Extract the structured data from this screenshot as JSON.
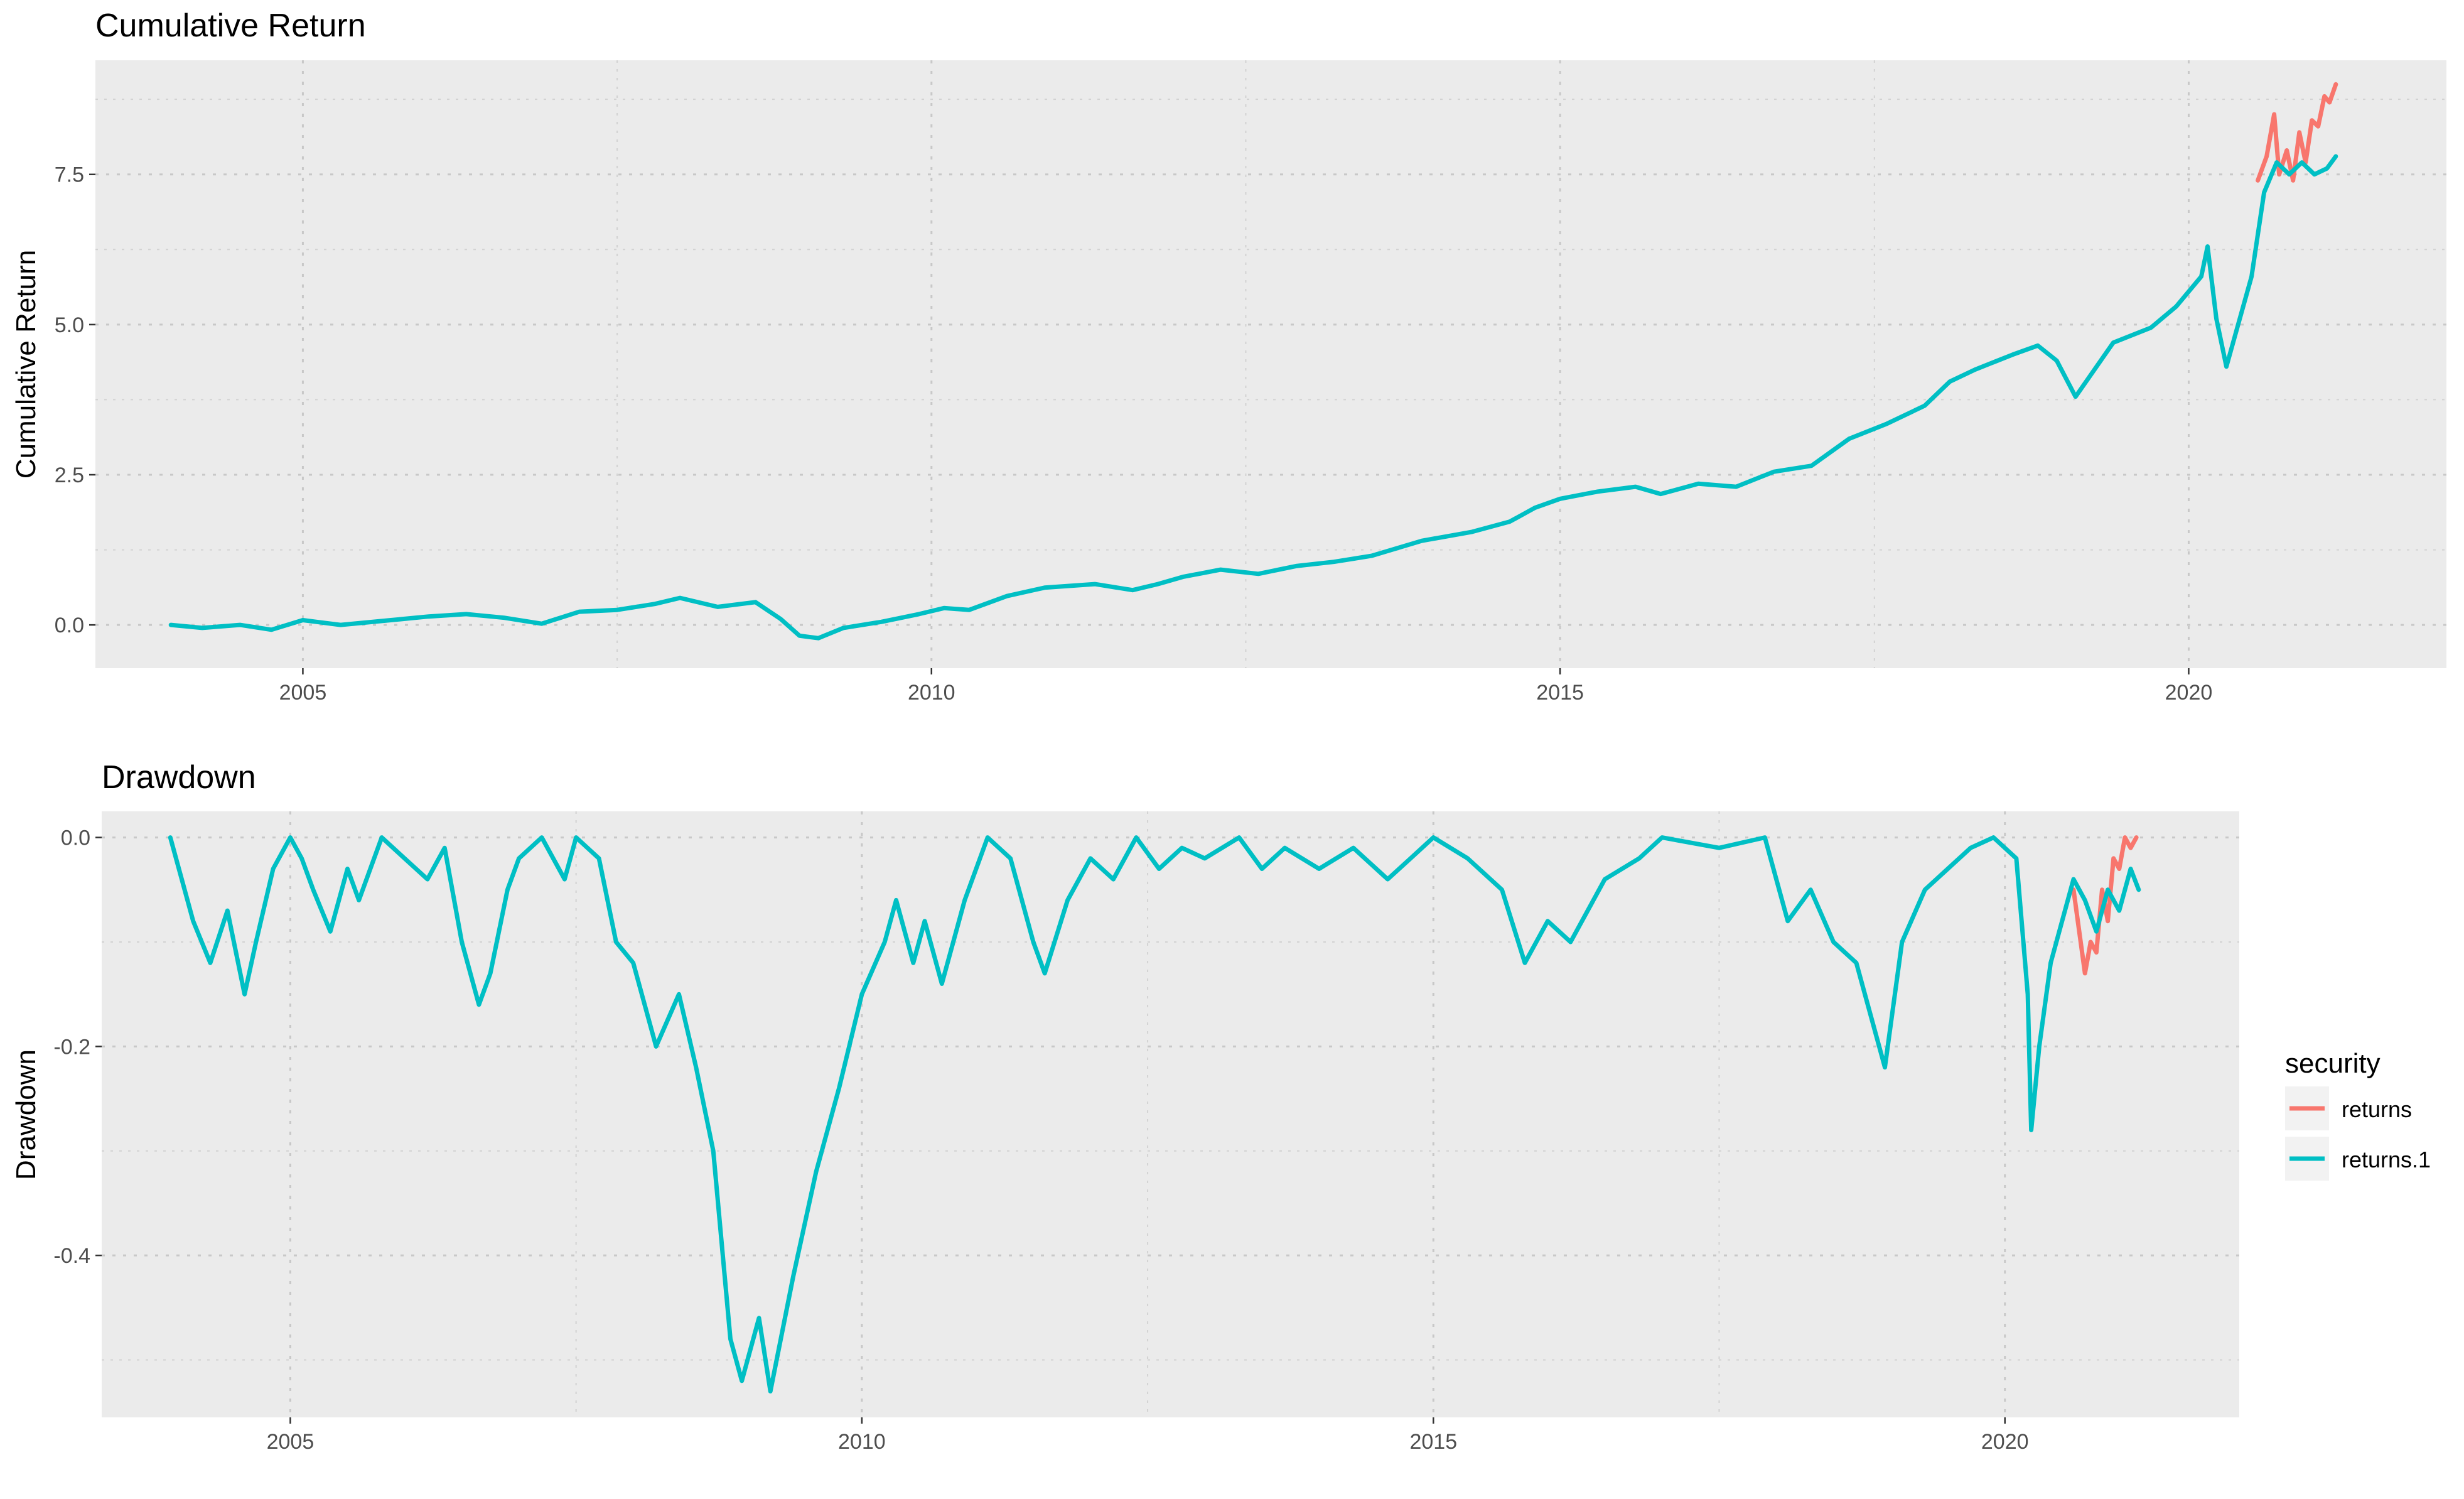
{
  "chart_data": [
    {
      "type": "line",
      "title": "Cumulative Return",
      "xlabel": "",
      "ylabel": "Cumulative Return",
      "xlim": [
        2003.35,
        2022.05
      ],
      "ylim": [
        -0.72,
        9.4
      ],
      "x_ticks": [
        "2005",
        "2010",
        "2015",
        "2020"
      ],
      "y_ticks": [
        "0.0",
        "2.5",
        "5.0",
        "7.5"
      ],
      "grid": true,
      "series": [
        {
          "name": "returns",
          "color": "#F8766D",
          "x": [
            2020.55,
            2020.62,
            2020.68,
            2020.72,
            2020.78,
            2020.83,
            2020.88,
            2020.93,
            2020.98,
            2021.03,
            2021.08,
            2021.12,
            2021.17
          ],
          "y": [
            7.4,
            7.8,
            8.5,
            7.5,
            7.9,
            7.4,
            8.2,
            7.7,
            8.4,
            8.3,
            8.8,
            8.7,
            9.0
          ]
        },
        {
          "name": "returns.1",
          "color": "#00BFC4",
          "x": [
            2003.95,
            2004.2,
            2004.5,
            2004.75,
            2005.0,
            2005.3,
            2005.7,
            2006.0,
            2006.3,
            2006.6,
            2006.9,
            2007.2,
            2007.5,
            2007.8,
            2008.0,
            2008.3,
            2008.6,
            2008.8,
            2008.95,
            2009.1,
            2009.3,
            2009.6,
            2009.9,
            2010.1,
            2010.3,
            2010.6,
            2010.9,
            2011.3,
            2011.6,
            2011.8,
            2012.0,
            2012.3,
            2012.6,
            2012.9,
            2013.2,
            2013.5,
            2013.9,
            2014.3,
            2014.6,
            2014.8,
            2015.0,
            2015.3,
            2015.6,
            2015.8,
            2016.1,
            2016.4,
            2016.7,
            2017.0,
            2017.3,
            2017.6,
            2017.9,
            2018.1,
            2018.3,
            2018.6,
            2018.8,
            2018.95,
            2019.1,
            2019.4,
            2019.7,
            2019.9,
            2020.1,
            2020.15,
            2020.22,
            2020.3,
            2020.5,
            2020.6,
            2020.7,
            2020.8,
            2020.9,
            2021.0,
            2021.1,
            2021.17
          ],
          "y": [
            0.0,
            -0.05,
            0.0,
            -0.08,
            0.08,
            0.0,
            0.08,
            0.14,
            0.18,
            0.12,
            0.02,
            0.22,
            0.25,
            0.35,
            0.45,
            0.3,
            0.38,
            0.1,
            -0.18,
            -0.22,
            -0.05,
            0.05,
            0.18,
            0.28,
            0.25,
            0.48,
            0.62,
            0.68,
            0.58,
            0.68,
            0.8,
            0.92,
            0.85,
            0.98,
            1.05,
            1.15,
            1.4,
            1.55,
            1.72,
            1.95,
            2.1,
            2.22,
            2.3,
            2.18,
            2.35,
            2.3,
            2.55,
            2.65,
            3.1,
            3.35,
            3.65,
            4.05,
            4.25,
            4.5,
            4.65,
            4.4,
            3.8,
            4.7,
            4.95,
            5.3,
            5.8,
            6.3,
            5.1,
            4.3,
            5.8,
            7.2,
            7.7,
            7.5,
            7.7,
            7.5,
            7.6,
            7.8
          ]
        }
      ]
    },
    {
      "type": "line",
      "title": "Drawdown",
      "xlabel": "",
      "ylabel": "Drawdown",
      "xlim": [
        2003.35,
        2022.05
      ],
      "ylim": [
        -0.555,
        0.025
      ],
      "x_ticks": [
        "2005",
        "2010",
        "2015",
        "2020"
      ],
      "y_ticks": [
        "0.0",
        "-0.2",
        "-0.4"
      ],
      "grid": true,
      "legend": {
        "title": "security",
        "placement": "right",
        "entries": [
          "returns",
          "returns.1"
        ]
      },
      "series": [
        {
          "name": "returns",
          "color": "#F8766D",
          "x": [
            2020.6,
            2020.65,
            2020.7,
            2020.75,
            2020.8,
            2020.85,
            2020.9,
            2020.95,
            2021.0,
            2021.05,
            2021.1,
            2021.15
          ],
          "y": [
            -0.05,
            -0.09,
            -0.13,
            -0.1,
            -0.11,
            -0.05,
            -0.08,
            -0.02,
            -0.03,
            0.0,
            -0.01,
            0.0
          ]
        },
        {
          "name": "returns.1",
          "color": "#00BFC4",
          "x": [
            2003.95,
            2004.05,
            2004.15,
            2004.3,
            2004.45,
            2004.6,
            2004.7,
            2004.85,
            2005.0,
            2005.1,
            2005.2,
            2005.35,
            2005.5,
            2005.6,
            2005.8,
            2006.0,
            2006.2,
            2006.35,
            2006.5,
            2006.65,
            2006.75,
            2006.9,
            2007.0,
            2007.2,
            2007.4,
            2007.5,
            2007.7,
            2007.85,
            2008.0,
            2008.2,
            2008.4,
            2008.55,
            2008.7,
            2008.85,
            2008.95,
            2009.1,
            2009.2,
            2009.4,
            2009.6,
            2009.8,
            2010.0,
            2010.2,
            2010.3,
            2010.45,
            2010.55,
            2010.7,
            2010.9,
            2011.1,
            2011.3,
            2011.5,
            2011.6,
            2011.8,
            2012.0,
            2012.2,
            2012.4,
            2012.6,
            2012.8,
            2013.0,
            2013.3,
            2013.5,
            2013.7,
            2014.0,
            2014.3,
            2014.6,
            2014.8,
            2015.0,
            2015.3,
            2015.6,
            2015.8,
            2016.0,
            2016.2,
            2016.5,
            2016.8,
            2017.0,
            2017.5,
            2017.9,
            2018.1,
            2018.3,
            2018.5,
            2018.7,
            2018.85,
            2018.95,
            2019.1,
            2019.3,
            2019.5,
            2019.7,
            2019.9,
            2020.1,
            2020.2,
            2020.23,
            2020.3,
            2020.4,
            2020.5,
            2020.6,
            2020.7,
            2020.8,
            2020.9,
            2021.0,
            2021.1,
            2021.17
          ],
          "y": [
            0.0,
            -0.04,
            -0.08,
            -0.12,
            -0.07,
            -0.15,
            -0.1,
            -0.03,
            0.0,
            -0.02,
            -0.05,
            -0.09,
            -0.03,
            -0.06,
            0.0,
            -0.02,
            -0.04,
            -0.01,
            -0.1,
            -0.16,
            -0.13,
            -0.05,
            -0.02,
            0.0,
            -0.04,
            0.0,
            -0.02,
            -0.1,
            -0.12,
            -0.2,
            -0.15,
            -0.22,
            -0.3,
            -0.48,
            -0.52,
            -0.46,
            -0.53,
            -0.42,
            -0.32,
            -0.24,
            -0.15,
            -0.1,
            -0.06,
            -0.12,
            -0.08,
            -0.14,
            -0.06,
            0.0,
            -0.02,
            -0.1,
            -0.13,
            -0.06,
            -0.02,
            -0.04,
            0.0,
            -0.03,
            -0.01,
            -0.02,
            0.0,
            -0.03,
            -0.01,
            -0.03,
            -0.01,
            -0.04,
            -0.02,
            0.0,
            -0.02,
            -0.05,
            -0.12,
            -0.08,
            -0.1,
            -0.04,
            -0.02,
            0.0,
            -0.01,
            0.0,
            -0.08,
            -0.05,
            -0.1,
            -0.12,
            -0.18,
            -0.22,
            -0.1,
            -0.05,
            -0.03,
            -0.01,
            0.0,
            -0.02,
            -0.15,
            -0.28,
            -0.2,
            -0.12,
            -0.08,
            -0.04,
            -0.06,
            -0.09,
            -0.05,
            -0.07,
            -0.03,
            -0.05
          ]
        }
      ]
    }
  ]
}
